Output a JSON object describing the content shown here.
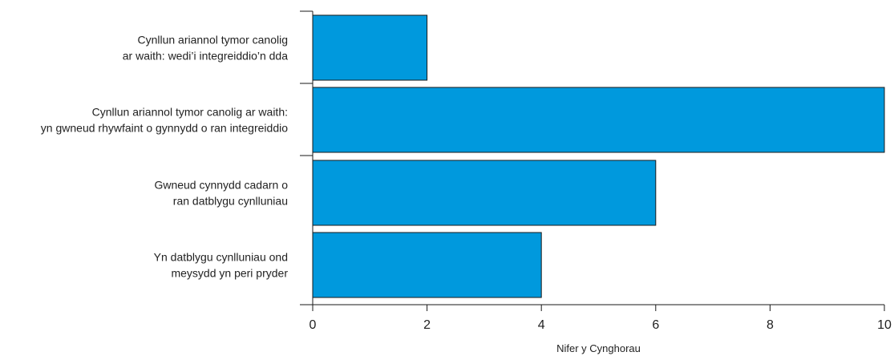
{
  "chart_data": {
    "type": "bar",
    "orientation": "horizontal",
    "categories": [
      [
        "Cynllun ariannol tymor canolig",
        "ar waith: wedi’i integreiddio’n dda"
      ],
      [
        "Cynllun ariannol tymor canolig ar waith:",
        "yn gwneud rhywfaint o gynnydd o ran integreiddio"
      ],
      [
        "Gwneud cynnydd cadarn o",
        "ran datblygu cynlluniau"
      ],
      [
        "Yn datblygu cynlluniau ond",
        "meysydd yn peri pryder"
      ]
    ],
    "values": [
      2,
      10,
      6,
      4
    ],
    "xlabel": "Nifer y Cynghorau",
    "ylabel": "",
    "title": "",
    "xlim": [
      0,
      10
    ],
    "xticks": [
      0,
      2,
      4,
      6,
      8,
      10
    ],
    "grid": false,
    "colors": {
      "bar_fill": "#0099dd",
      "bar_stroke": "#1a1a1a",
      "axis": "#1a1a1a",
      "text": "#222222"
    }
  }
}
